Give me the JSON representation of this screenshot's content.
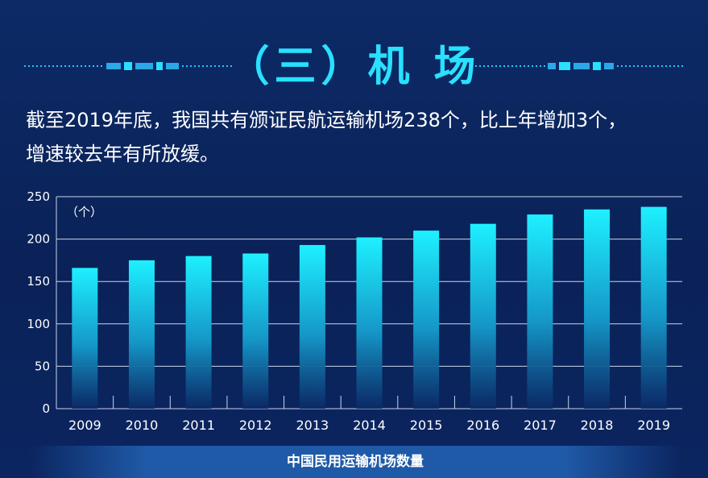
{
  "title": "（三）机  场",
  "intro_line1": "截至2019年底，我国共有颁证民航运输机场238个，比上年增加3个，",
  "intro_line2": "增速较去年有所放缓。",
  "colors": {
    "background": "#0b2560",
    "title": "#29e0ff",
    "bar_top": "#1ef0ff",
    "bar_bottom": "#0b2a66",
    "grid": "#c9d4ea"
  },
  "chart_data": {
    "type": "bar",
    "categories": [
      "2009",
      "2010",
      "2011",
      "2012",
      "2013",
      "2014",
      "2015",
      "2016",
      "2017",
      "2018",
      "2019"
    ],
    "values": [
      166,
      175,
      180,
      183,
      193,
      202,
      210,
      218,
      229,
      235,
      238
    ],
    "title": "中国民用运输机场数量",
    "unit_label": "（个）",
    "ylim": [
      0,
      250
    ],
    "yticks": [
      0,
      50,
      100,
      150,
      200,
      250
    ],
    "grid": true
  }
}
